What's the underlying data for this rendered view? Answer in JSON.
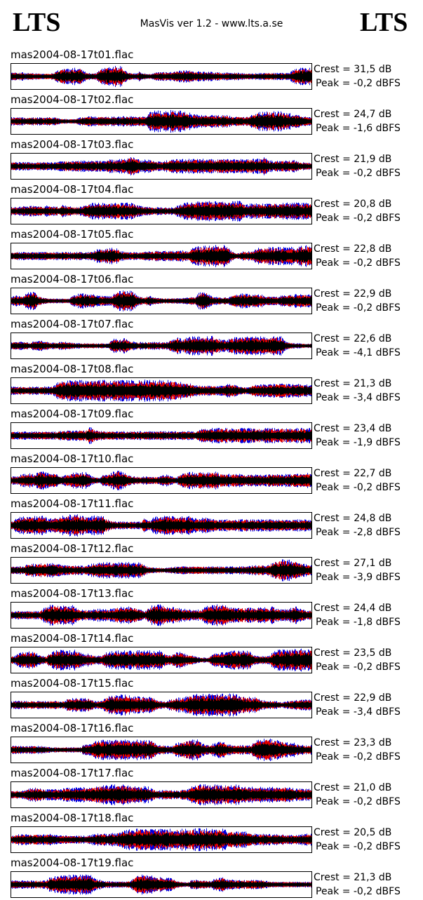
{
  "header": {
    "logo_left": "LTS",
    "title": "MasVis ver 1.2 - www.lts.a.se",
    "logo_right": "LTS"
  },
  "tracks": [
    {
      "name": "mas2004-08-17t01.flac",
      "crest": "Crest = 31,5 dB",
      "peak": "Peak = -0,2 dBFS"
    },
    {
      "name": "mas2004-08-17t02.flac",
      "crest": "Crest = 24,7 dB",
      "peak": "Peak = -1,6 dBFS"
    },
    {
      "name": "mas2004-08-17t03.flac",
      "crest": "Crest = 21,9 dB",
      "peak": "Peak = -0,2 dBFS"
    },
    {
      "name": "mas2004-08-17t04.flac",
      "crest": "Crest = 20,8 dB",
      "peak": "Peak = -0,2 dBFS"
    },
    {
      "name": "mas2004-08-17t05.flac",
      "crest": "Crest = 22,8 dB",
      "peak": "Peak = -0,2 dBFS"
    },
    {
      "name": "mas2004-08-17t06.flac",
      "crest": "Crest = 22,9 dB",
      "peak": "Peak = -0,2 dBFS"
    },
    {
      "name": "mas2004-08-17t07.flac",
      "crest": "Crest = 22,6 dB",
      "peak": "Peak = -4,1 dBFS"
    },
    {
      "name": "mas2004-08-17t08.flac",
      "crest": "Crest = 21,3 dB",
      "peak": "Peak = -3,4 dBFS"
    },
    {
      "name": "mas2004-08-17t09.flac",
      "crest": "Crest = 23,4 dB",
      "peak": "Peak = -1,9 dBFS"
    },
    {
      "name": "mas2004-08-17t10.flac",
      "crest": "Crest = 22,7 dB",
      "peak": "Peak = -0,2 dBFS"
    },
    {
      "name": "mas2004-08-17t11.flac",
      "crest": "Crest = 24,8 dB",
      "peak": "Peak = -2,8 dBFS"
    },
    {
      "name": "mas2004-08-17t12.flac",
      "crest": "Crest = 27,1 dB",
      "peak": "Peak = -3,9 dBFS"
    },
    {
      "name": "mas2004-08-17t13.flac",
      "crest": "Crest = 24,4 dB",
      "peak": "Peak = -1,8 dBFS"
    },
    {
      "name": "mas2004-08-17t14.flac",
      "crest": "Crest = 23,5 dB",
      "peak": "Peak = -0,2 dBFS"
    },
    {
      "name": "mas2004-08-17t15.flac",
      "crest": "Crest = 22,9 dB",
      "peak": "Peak = -3,4 dBFS"
    },
    {
      "name": "mas2004-08-17t16.flac",
      "crest": "Crest = 23,3 dB",
      "peak": "Peak = -0,2 dBFS"
    },
    {
      "name": "mas2004-08-17t17.flac",
      "crest": "Crest = 21,0 dB",
      "peak": "Peak = -0,2 dBFS"
    },
    {
      "name": "mas2004-08-17t18.flac",
      "crest": "Crest = 20,5 dB",
      "peak": "Peak = -0,2 dBFS"
    },
    {
      "name": "mas2004-08-17t19.flac",
      "crest": "Crest = 21,3 dB",
      "peak": "Peak = -0,2 dBFS"
    }
  ]
}
